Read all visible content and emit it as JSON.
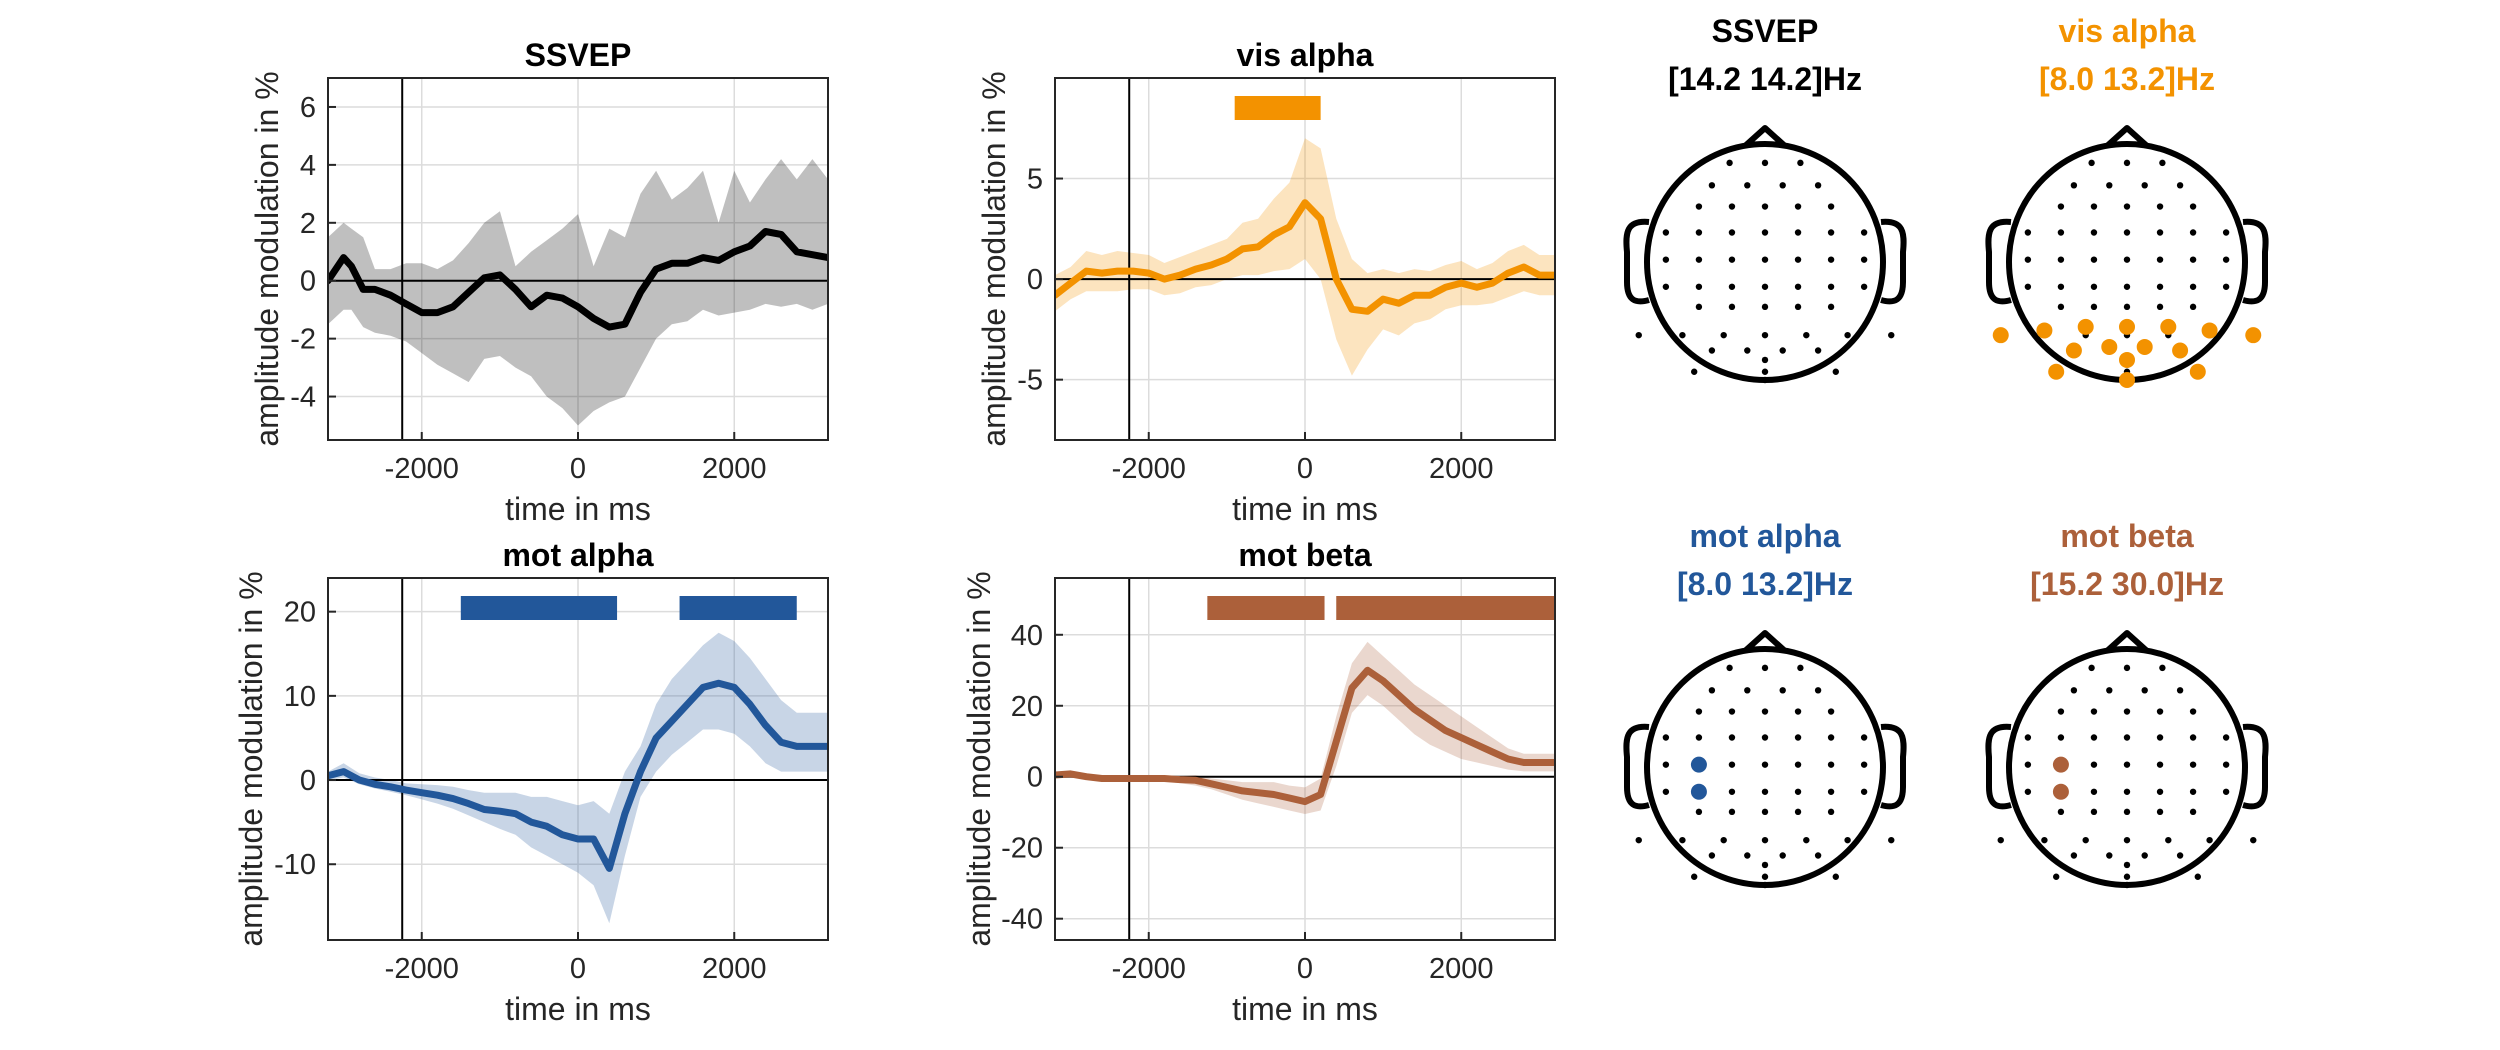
{
  "colors": {
    "ssvep": "#000000",
    "vis_alpha": "#F39200",
    "mot_alpha": "#22579A",
    "mot_beta": "#AC603A",
    "grid": "#dcdcdc",
    "axis": "#262626"
  },
  "chart_data": [
    {
      "id": "ssvep",
      "type": "line",
      "title": "SSVEP",
      "xlabel": "time in ms",
      "ylabel": "amplitude modulation in %",
      "xlim": [
        -3200,
        3200
      ],
      "ylim": [
        -5.5,
        7
      ],
      "xticks": [
        -2000,
        0,
        2000
      ],
      "xtick_labels": [
        "-2000",
        "0",
        "2000"
      ],
      "yticks": [
        -4,
        -2,
        0,
        2,
        4,
        6
      ],
      "ytick_labels": [
        "-4",
        "-2",
        "0",
        "2",
        "4",
        "6"
      ],
      "grid": true,
      "vline": -2250,
      "hline": 0,
      "color_key": "ssvep",
      "x": [
        -3200,
        -3000,
        -2900,
        -2750,
        -2600,
        -2400,
        -2200,
        -2000,
        -1800,
        -1600,
        -1400,
        -1200,
        -1000,
        -800,
        -600,
        -400,
        -200,
        0,
        200,
        400,
        600,
        800,
        1000,
        1200,
        1400,
        1600,
        1800,
        2000,
        2200,
        2400,
        2600,
        2800,
        3000,
        3200
      ],
      "y": [
        0,
        0.8,
        0.5,
        -0.3,
        -0.3,
        -0.5,
        -0.8,
        -1.1,
        -1.1,
        -0.9,
        -0.4,
        0.1,
        0.2,
        -0.3,
        -0.9,
        -0.5,
        -0.6,
        -0.9,
        -1.3,
        -1.6,
        -1.5,
        -0.4,
        0.4,
        0.6,
        0.6,
        0.8,
        0.7,
        1.0,
        1.2,
        1.7,
        1.6,
        1.0,
        0.9,
        0.8
      ],
      "lower": [
        -1.5,
        -1.0,
        -1.0,
        -1.6,
        -1.8,
        -1.9,
        -2.1,
        -2.5,
        -2.9,
        -3.2,
        -3.5,
        -2.7,
        -2.6,
        -3.0,
        -3.3,
        -4.0,
        -4.4,
        -5.0,
        -4.5,
        -4.2,
        -4.0,
        -3.0,
        -2.0,
        -1.5,
        -1.4,
        -1.0,
        -1.2,
        -1.1,
        -1.0,
        -0.8,
        -0.9,
        -0.8,
        -1.0,
        -0.8
      ],
      "upper": [
        1.5,
        2.0,
        1.8,
        1.5,
        0.4,
        0.4,
        0.6,
        0.6,
        0.4,
        0.7,
        1.3,
        2.0,
        2.4,
        0.5,
        1.0,
        1.4,
        1.8,
        2.3,
        0.5,
        1.8,
        1.5,
        3.0,
        3.8,
        2.8,
        3.2,
        3.8,
        2.0,
        3.8,
        2.7,
        3.5,
        4.2,
        3.5,
        4.2,
        3.5
      ],
      "sig_bars": []
    },
    {
      "id": "vis_alpha",
      "type": "line",
      "title": "vis alpha",
      "xlabel": "time in ms",
      "ylabel": "amplitude modulation in %",
      "xlim": [
        -3200,
        3200
      ],
      "ylim": [
        -8,
        10
      ],
      "xticks": [
        -2000,
        0,
        2000
      ],
      "xtick_labels": [
        "-2000",
        "0",
        "2000"
      ],
      "yticks": [
        -5,
        0,
        5
      ],
      "ytick_labels": [
        "-5",
        "0",
        "5"
      ],
      "grid": true,
      "vline": -2250,
      "hline": 0,
      "color_key": "vis_alpha",
      "x": [
        -3200,
        -3000,
        -2800,
        -2600,
        -2400,
        -2200,
        -2000,
        -1800,
        -1600,
        -1400,
        -1200,
        -1000,
        -800,
        -600,
        -400,
        -200,
        0,
        200,
        400,
        600,
        800,
        1000,
        1200,
        1400,
        1600,
        1800,
        2000,
        2200,
        2400,
        2600,
        2800,
        3000,
        3200
      ],
      "y": [
        -0.8,
        -0.2,
        0.4,
        0.3,
        0.4,
        0.4,
        0.3,
        0.0,
        0.2,
        0.5,
        0.7,
        1.0,
        1.5,
        1.6,
        2.2,
        2.6,
        3.8,
        3.0,
        0.0,
        -1.5,
        -1.6,
        -1.0,
        -1.2,
        -0.8,
        -0.8,
        -0.4,
        -0.2,
        -0.4,
        -0.2,
        0.3,
        0.6,
        0.2,
        0.2
      ],
      "lower": [
        -1.6,
        -1.0,
        -0.6,
        -0.6,
        -0.6,
        -0.5,
        -0.5,
        -0.8,
        -0.7,
        -0.4,
        -0.3,
        0.0,
        0.2,
        0.2,
        0.4,
        0.5,
        1.0,
        0.0,
        -3.0,
        -4.8,
        -3.5,
        -2.5,
        -2.8,
        -2.2,
        -2.0,
        -1.5,
        -1.3,
        -1.3,
        -1.2,
        -0.9,
        -0.6,
        -0.8,
        -0.8
      ],
      "upper": [
        0.2,
        0.6,
        1.4,
        1.2,
        1.4,
        1.3,
        1.2,
        0.8,
        1.1,
        1.4,
        1.7,
        2.0,
        2.8,
        3.0,
        4.0,
        4.8,
        7.0,
        6.5,
        3.0,
        1.0,
        0.3,
        0.5,
        0.3,
        0.5,
        0.4,
        0.7,
        0.9,
        0.5,
        0.8,
        1.4,
        1.7,
        1.2,
        1.2
      ],
      "sig_bars": [
        [
          -900,
          200
        ]
      ]
    },
    {
      "id": "mot_alpha",
      "type": "line",
      "title": "mot alpha",
      "xlabel": "time in ms",
      "ylabel": "amplitude modulation in %",
      "xlim": [
        -3200,
        3200
      ],
      "ylim": [
        -19,
        24
      ],
      "xticks": [
        -2000,
        0,
        2000
      ],
      "xtick_labels": [
        "-2000",
        "0",
        "2000"
      ],
      "yticks": [
        -10,
        0,
        10,
        20
      ],
      "ytick_labels": [
        "-10",
        "0",
        "10",
        "20"
      ],
      "grid": true,
      "vline": -2250,
      "hline": 0,
      "color_key": "mot_alpha",
      "x": [
        -3200,
        -3000,
        -2800,
        -2600,
        -2400,
        -2200,
        -2000,
        -1800,
        -1600,
        -1400,
        -1200,
        -1000,
        -800,
        -600,
        -400,
        -200,
        0,
        200,
        400,
        600,
        800,
        1000,
        1200,
        1400,
        1600,
        1800,
        2000,
        2200,
        2400,
        2600,
        2800,
        3000,
        3200
      ],
      "y": [
        0.5,
        1.0,
        0.0,
        -0.5,
        -0.8,
        -1.2,
        -1.5,
        -1.8,
        -2.2,
        -2.8,
        -3.5,
        -3.7,
        -4.0,
        -5.0,
        -5.5,
        -6.5,
        -7.0,
        -7.0,
        -10.5,
        -4.0,
        1.0,
        5.0,
        7.0,
        9.0,
        11.0,
        11.5,
        11.0,
        9.0,
        6.5,
        4.5,
        4.0,
        4.0,
        4.0
      ],
      "lower": [
        0,
        0.3,
        -0.5,
        -1.0,
        -1.4,
        -1.8,
        -2.3,
        -2.8,
        -3.4,
        -4.2,
        -5.0,
        -5.8,
        -6.5,
        -8.0,
        -9.0,
        -10.0,
        -11.0,
        -12.5,
        -17.0,
        -9.0,
        -2.0,
        1.0,
        3.0,
        4.5,
        6.0,
        6.0,
        5.5,
        4.0,
        2.0,
        1.0,
        1.0,
        1.0,
        1.0
      ],
      "upper": [
        1.0,
        2.0,
        0.8,
        0.3,
        0.0,
        -0.4,
        -0.5,
        -0.6,
        -0.8,
        -1.2,
        -1.5,
        -1.5,
        -1.5,
        -2.0,
        -2.0,
        -2.5,
        -3.0,
        -2.5,
        -4.0,
        1.0,
        4.0,
        9.0,
        12.0,
        14.0,
        16.0,
        17.5,
        16.5,
        14.5,
        12.0,
        9.5,
        8.0,
        8.0,
        8.0
      ],
      "sig_bars": [
        [
          -1500,
          500
        ],
        [
          1300,
          2800
        ]
      ]
    },
    {
      "id": "mot_beta",
      "type": "line",
      "title": "mot beta",
      "xlabel": "time in ms",
      "ylabel": "amplitude modulation in %",
      "xlim": [
        -3200,
        3200
      ],
      "ylim": [
        -46,
        56
      ],
      "xticks": [
        -2000,
        0,
        2000
      ],
      "xtick_labels": [
        "-2000",
        "0",
        "2000"
      ],
      "yticks": [
        -40,
        -20,
        0,
        20,
        40
      ],
      "ytick_labels": [
        "-40",
        "-20",
        "0",
        "20",
        "40"
      ],
      "grid": true,
      "vline": -2250,
      "hline": 0,
      "color_key": "mot_beta",
      "x": [
        -3200,
        -3000,
        -2800,
        -2600,
        -2400,
        -2200,
        -2000,
        -1800,
        -1600,
        -1400,
        -1200,
        -1000,
        -800,
        -600,
        -400,
        -200,
        0,
        200,
        400,
        600,
        800,
        1000,
        1200,
        1400,
        1600,
        1800,
        2000,
        2200,
        2400,
        2600,
        2800,
        3000,
        3200
      ],
      "y": [
        0.5,
        0.8,
        0,
        -0.5,
        -0.5,
        -0.5,
        -0.5,
        -0.5,
        -0.8,
        -1.0,
        -2.0,
        -3.0,
        -4.0,
        -4.5,
        -5.0,
        -6.0,
        -7.0,
        -5.0,
        10.0,
        25.0,
        30.0,
        27.0,
        23.0,
        19.0,
        16.0,
        13.0,
        11.0,
        9.0,
        7.0,
        5.0,
        4.0,
        4.0,
        4.0
      ],
      "lower": [
        0,
        0,
        -0.8,
        -1.2,
        -1.2,
        -1.2,
        -1.2,
        -1.3,
        -1.8,
        -2.5,
        -3.5,
        -5.0,
        -6.5,
        -7.5,
        -8.5,
        -9.5,
        -10.5,
        -9.5,
        3.0,
        18.0,
        23.0,
        20.0,
        16.0,
        12.0,
        9.0,
        7.0,
        5.0,
        4.0,
        3.0,
        2.0,
        1.5,
        1.5,
        1.5
      ],
      "upper": [
        1.2,
        1.5,
        0.8,
        0.2,
        0.2,
        0.2,
        0.2,
        0.2,
        0.2,
        0.5,
        -0.5,
        -1.0,
        -1.5,
        -1.5,
        -1.5,
        -2.5,
        -3.0,
        -0.5,
        17.0,
        32.0,
        38.0,
        34.0,
        30.0,
        26.0,
        23.0,
        20.0,
        17.0,
        14.0,
        11.0,
        8.0,
        6.5,
        6.5,
        6.5
      ],
      "sig_bars": [
        [
          -1250,
          250
        ],
        [
          400,
          3200
        ]
      ]
    }
  ],
  "topoplots": [
    {
      "id": "topo-ssvep",
      "title_line1": "SSVEP",
      "title_line2": "[14.2 14.2]Hz",
      "color_key": "ssvep",
      "highlighted": []
    },
    {
      "id": "topo-vis-alpha",
      "title_line1": "vis alpha",
      "title_line2": "[8.0 13.2]Hz",
      "color_key": "vis_alpha",
      "highlighted": [
        [
          -1.07,
          0.62
        ],
        [
          -0.7,
          0.58
        ],
        [
          -0.35,
          0.55
        ],
        [
          0,
          0.55
        ],
        [
          0.35,
          0.55
        ],
        [
          0.7,
          0.58
        ],
        [
          1.07,
          0.62
        ],
        [
          -0.45,
          0.75
        ],
        [
          -0.15,
          0.72
        ],
        [
          0.15,
          0.72
        ],
        [
          0.45,
          0.75
        ],
        [
          -0.6,
          0.93
        ],
        [
          0,
          1.0
        ],
        [
          0.6,
          0.93
        ],
        [
          0,
          0.83
        ]
      ]
    },
    {
      "id": "topo-mot-alpha",
      "title_line1": "mot alpha",
      "title_line2": "[8.0 13.2]Hz",
      "color_key": "mot_alpha",
      "highlighted": [
        [
          -0.56,
          -0.02
        ],
        [
          -0.56,
          0.21
        ]
      ]
    },
    {
      "id": "topo-mot-beta",
      "title_line1": "mot beta",
      "title_line2": "[15.2 30.0]Hz",
      "color_key": "mot_beta",
      "highlighted": [
        [
          -0.56,
          -0.02
        ],
        [
          -0.56,
          0.21
        ]
      ]
    }
  ]
}
